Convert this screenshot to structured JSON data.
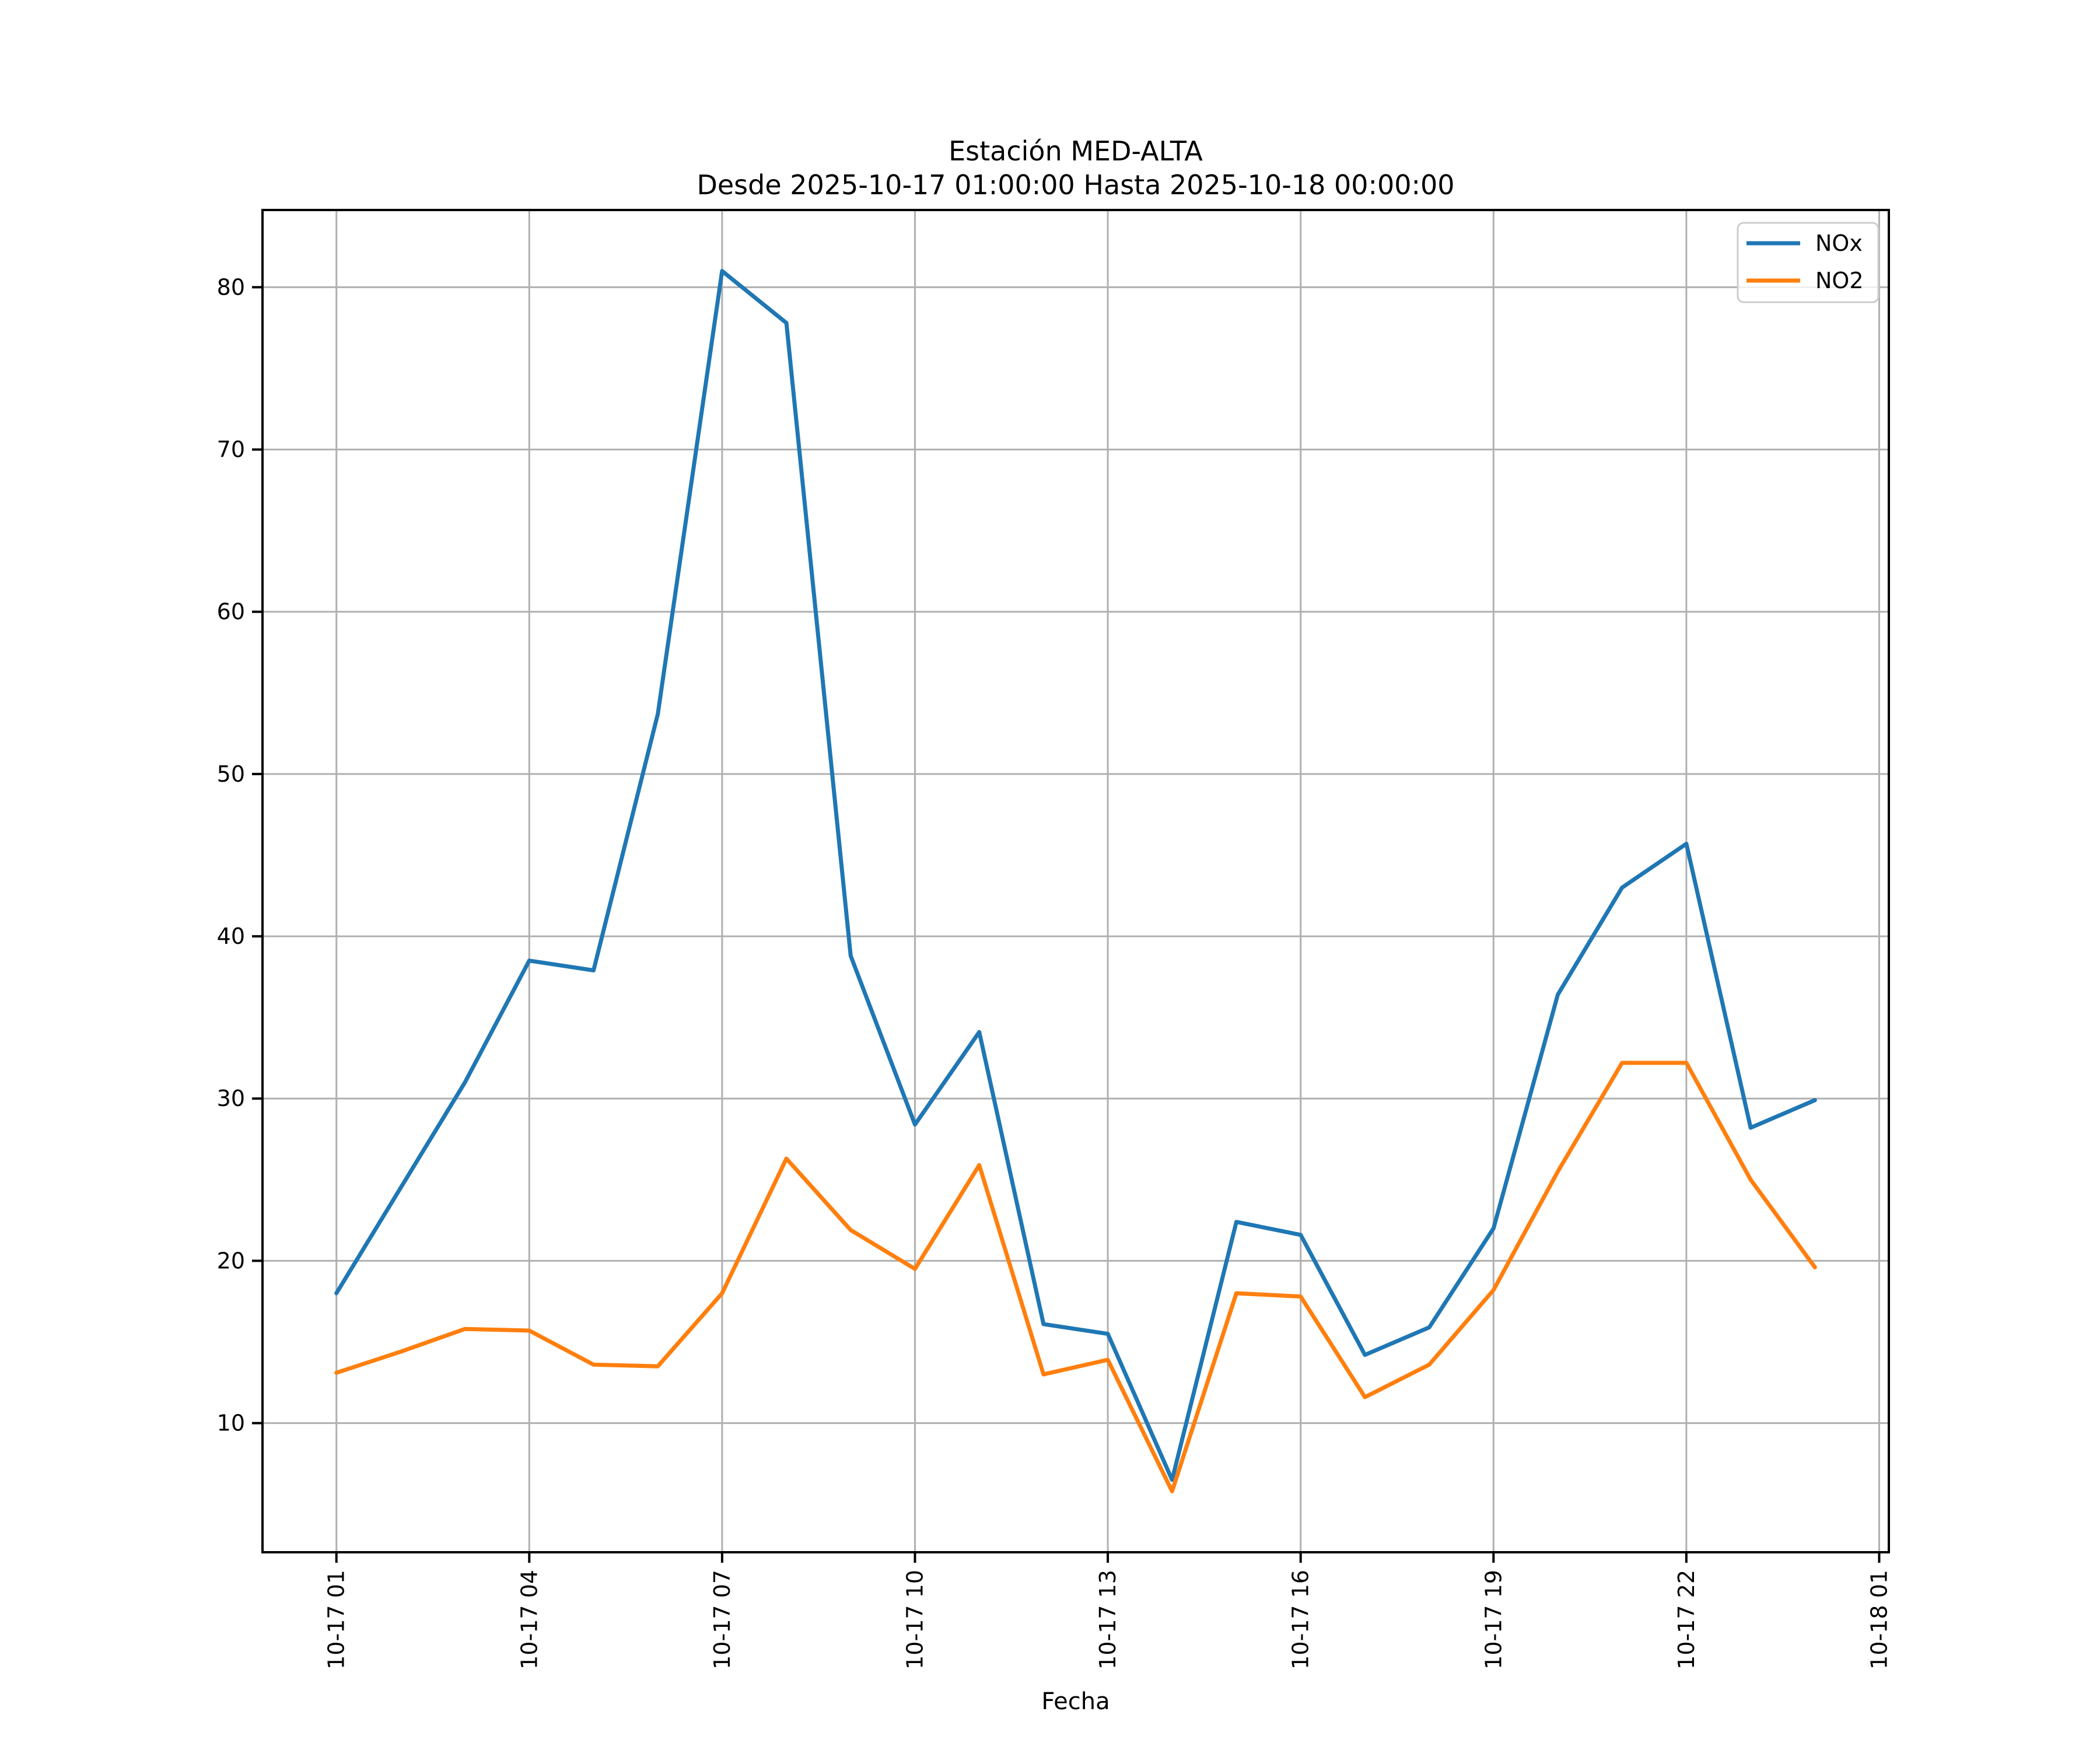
{
  "chart_data": {
    "type": "line",
    "title": "Estación MED-ALTA",
    "subtitle": "Desde 2025-10-17 01:00:00 Hasta 2025-10-18 00:00:00",
    "xlabel": "Fecha",
    "ylabel": "",
    "x_hour_index": [
      1,
      2,
      3,
      4,
      5,
      6,
      7,
      8,
      9,
      10,
      11,
      12,
      13,
      14,
      15,
      16,
      17,
      18,
      19,
      20,
      21,
      22,
      23,
      24
    ],
    "x_tick_positions": [
      1,
      4,
      7,
      10,
      13,
      16,
      19,
      22,
      25
    ],
    "x_tick_labels": [
      "10-17 01",
      "10-17 04",
      "10-17 07",
      "10-17 10",
      "10-17 13",
      "10-17 16",
      "10-17 19",
      "10-17 22",
      "10-18 01"
    ],
    "x_tick_rotation_deg": 90,
    "y_ticks": [
      10,
      20,
      30,
      40,
      50,
      60,
      70,
      80
    ],
    "xlim": [
      -0.15,
      25.15
    ],
    "ylim": [
      2.04,
      84.76
    ],
    "grid": true,
    "grid_color": "#b0b0b0",
    "background_color": "#ffffff",
    "legend_position": "upper right",
    "series": [
      {
        "name": "NOx",
        "color": "#1f77b4",
        "values": [
          18.0,
          24.5,
          31.0,
          38.5,
          37.9,
          53.7,
          81.0,
          77.8,
          38.8,
          28.4,
          34.1,
          16.1,
          15.5,
          6.5,
          22.4,
          21.6,
          14.2,
          15.9,
          22.0,
          36.4,
          43.0,
          45.7,
          28.2,
          29.9
        ]
      },
      {
        "name": "NO2",
        "color": "#ff7f0e",
        "values": [
          13.1,
          14.4,
          15.8,
          15.7,
          13.6,
          13.5,
          18.0,
          26.3,
          21.9,
          19.5,
          25.9,
          13.0,
          13.9,
          5.8,
          18.0,
          17.8,
          11.6,
          13.6,
          18.2,
          25.5,
          32.2,
          32.2,
          25.0,
          19.6
        ]
      }
    ]
  }
}
